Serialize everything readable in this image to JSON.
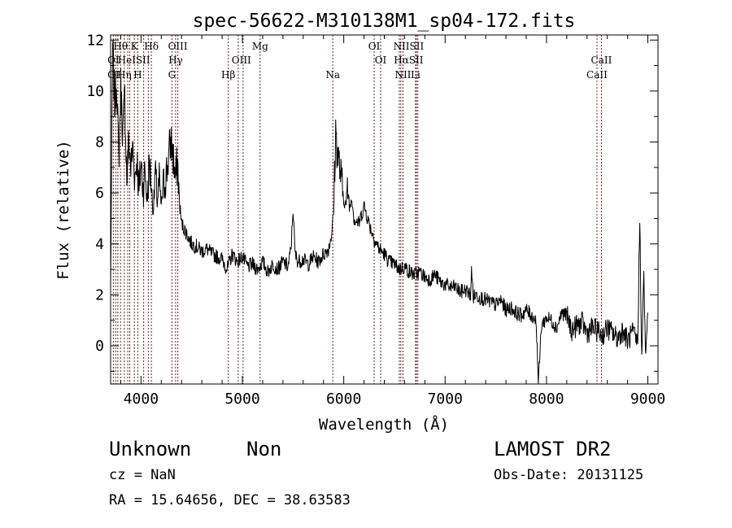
{
  "chart_data": {
    "type": "line",
    "title": "spec-56622-M310138M1_sp04-172.fits",
    "xlabel": "Wavelength (Å)",
    "ylabel": "Flux (relative)",
    "xlim": [
      3700,
      9100
    ],
    "ylim": [
      -1.5,
      12.2
    ],
    "xticks": [
      4000,
      5000,
      6000,
      7000,
      8000,
      9000
    ],
    "yticks": [
      0,
      2,
      4,
      6,
      8,
      10,
      12
    ],
    "grid": false,
    "series": [
      {
        "x": [
          3700,
          3720,
          3740,
          3760,
          3780,
          3800,
          3820,
          3840,
          3860,
          3880,
          3900,
          3920,
          3940,
          3960,
          3980,
          4000,
          4020,
          4040,
          4060,
          4080,
          4100,
          4120,
          4140,
          4160,
          4180,
          4200,
          4220,
          4240,
          4260,
          4280,
          4300,
          4320,
          4340,
          4360,
          4380,
          4400,
          4450,
          4500,
          4550,
          4600,
          4650,
          4700,
          4750,
          4800,
          4850,
          4900,
          4950,
          5000,
          5050,
          5100,
          5150,
          5200,
          5250,
          5300,
          5350,
          5400,
          5450,
          5480,
          5500,
          5520,
          5550,
          5600,
          5650,
          5700,
          5750,
          5800,
          5850,
          5880,
          5900,
          5920,
          5940,
          5960,
          5980,
          6000,
          6020,
          6040,
          6060,
          6080,
          6100,
          6150,
          6200,
          6250,
          6300,
          6350,
          6400,
          6450,
          6500,
          6550,
          6600,
          6650,
          6700,
          6750,
          6800,
          6850,
          6900,
          6950,
          7000,
          7050,
          7100,
          7150,
          7200,
          7250,
          7260,
          7280,
          7300,
          7350,
          7400,
          7450,
          7500,
          7550,
          7600,
          7650,
          7700,
          7750,
          7800,
          7850,
          7880,
          7900,
          7920,
          7950,
          8000,
          8050,
          8100,
          8150,
          8200,
          8250,
          8300,
          8350,
          8400,
          8450,
          8500,
          8550,
          8600,
          8650,
          8700,
          8750,
          8800,
          8850,
          8900,
          8920,
          8940,
          8960,
          8980,
          9000
        ],
        "y": [
          2.4,
          11.8,
          9.5,
          10.5,
          7.2,
          10.2,
          8.3,
          9.8,
          6.5,
          8.1,
          7.0,
          7.8,
          6.6,
          7.4,
          6.0,
          7.2,
          6.2,
          6.9,
          5.8,
          7.1,
          6.5,
          5.2,
          6.8,
          5.6,
          6.4,
          5.5,
          6.2,
          6.6,
          7.0,
          7.7,
          8.0,
          7.3,
          6.5,
          7.2,
          5.6,
          4.8,
          4.4,
          4.0,
          3.9,
          3.7,
          3.8,
          3.6,
          3.5,
          3.4,
          3.0,
          3.6,
          3.3,
          3.5,
          3.1,
          3.2,
          3.0,
          3.3,
          2.9,
          3.2,
          3.0,
          3.3,
          3.1,
          3.8,
          5.4,
          3.6,
          3.3,
          3.4,
          3.2,
          3.5,
          3.3,
          3.6,
          3.8,
          4.4,
          5.2,
          8.4,
          7.5,
          7.0,
          6.3,
          5.8,
          5.5,
          6.2,
          5.4,
          5.9,
          5.0,
          4.8,
          5.5,
          4.8,
          4.2,
          3.8,
          3.6,
          3.3,
          3.2,
          3.0,
          3.1,
          2.9,
          2.8,
          2.9,
          2.7,
          2.6,
          2.8,
          2.5,
          2.4,
          2.3,
          2.3,
          2.1,
          2.2,
          2.0,
          2.9,
          1.9,
          2.0,
          1.9,
          1.8,
          1.7,
          1.6,
          1.8,
          1.4,
          1.5,
          1.3,
          1.2,
          1.4,
          1.2,
          1.1,
          0.9,
          -1.5,
          0.8,
          1.1,
          1.0,
          0.7,
          1.3,
          1.2,
          0.6,
          0.8,
          0.9,
          0.5,
          0.7,
          0.6,
          0.4,
          0.7,
          0.5,
          0.3,
          0.6,
          0.2,
          0.5,
          0.1,
          5.0,
          -0.5,
          2.8,
          -0.6,
          1.3
        ]
      }
    ],
    "lines": {
      "x": [
        3727,
        3750,
        3771,
        3798,
        3835,
        3869,
        3889,
        3934,
        3968,
        4026,
        4072,
        4102,
        4305,
        4341,
        4363,
        4861,
        4959,
        5007,
        5175,
        5892,
        6300,
        6364,
        6548,
        6563,
        6584,
        6717,
        6731,
        6708,
        8498,
        8542
      ]
    },
    "line_labels": [
      {
        "text": "Hθ",
        "x": 3798,
        "row": 1
      },
      {
        "text": "K",
        "x": 3934,
        "row": 1
      },
      {
        "text": "Hδ",
        "x": 4102,
        "row": 1
      },
      {
        "text": "OIII",
        "x": 4363,
        "row": 1
      },
      {
        "text": "Mg",
        "x": 5175,
        "row": 1
      },
      {
        "text": "OI",
        "x": 6300,
        "row": 1
      },
      {
        "text": "NIISII",
        "x": 6640,
        "row": 1
      },
      {
        "text": "OI",
        "x": 3727,
        "row": 2
      },
      {
        "text": "HeISII",
        "x": 3930,
        "row": 2
      },
      {
        "text": "Hγ",
        "x": 4341,
        "row": 2
      },
      {
        "text": "OIII",
        "x": 4990,
        "row": 2
      },
      {
        "text": "OI",
        "x": 6364,
        "row": 2
      },
      {
        "text": "HαSII",
        "x": 6640,
        "row": 2
      },
      {
        "text": "CaII",
        "x": 8542,
        "row": 2
      },
      {
        "text": "OI",
        "x": 3727,
        "row": 3
      },
      {
        "text": "Hη",
        "x": 3835,
        "row": 3
      },
      {
        "text": "H",
        "x": 3968,
        "row": 3
      },
      {
        "text": "G",
        "x": 4305,
        "row": 3
      },
      {
        "text": "Hβ",
        "x": 4861,
        "row": 3
      },
      {
        "text": "Na",
        "x": 5892,
        "row": 3
      },
      {
        "text": "NII",
        "x": 6584,
        "row": 3
      },
      {
        "text": "Li",
        "x": 6708,
        "row": 3
      },
      {
        "text": "CaII",
        "x": 8498,
        "row": 3
      }
    ]
  },
  "footer": {
    "object_class": "Unknown",
    "subclass": "Non",
    "survey": "LAMOST DR2",
    "cz": "cz = NaN",
    "obs_date": "Obs-Date: 20131125",
    "coords": "RA =  15.64656, DEC =  38.63583"
  },
  "colors": {
    "spectrum": "#000000",
    "lines": "#8b1a1a"
  }
}
